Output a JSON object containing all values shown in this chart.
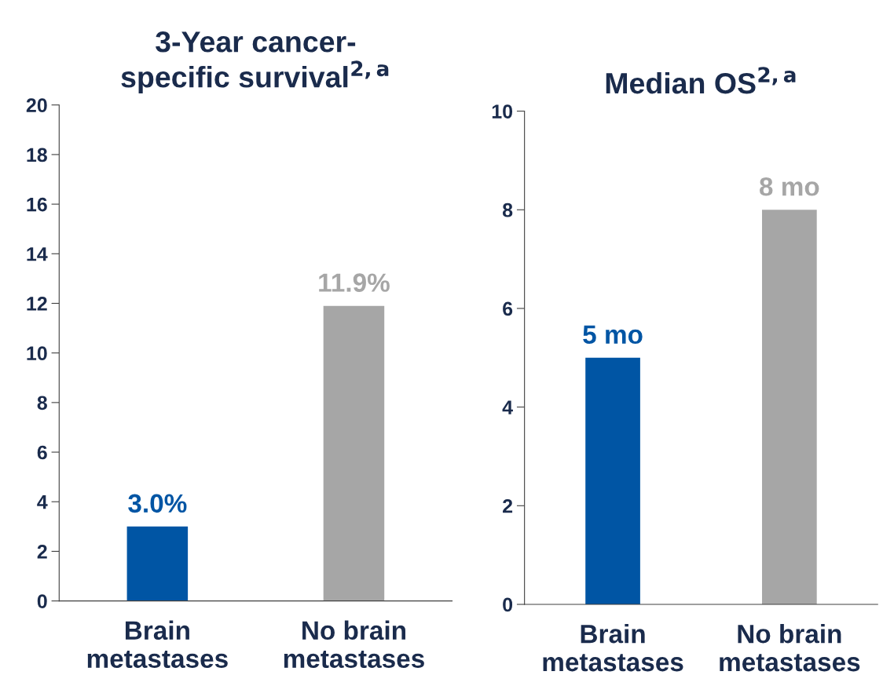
{
  "chart_data": [
    {
      "type": "bar",
      "title": "3-Year cancer-\nspecific survival$^{2,a}$",
      "categories": [
        "Brain\nmetastases",
        "No brain\nmetastases"
      ],
      "values": [
        3.0,
        11.9
      ],
      "colors": [
        "#0055a4",
        "#a6a6a6"
      ],
      "value_labels": [
        "3.0%",
        "11.9%"
      ],
      "ylim": [
        0,
        20
      ],
      "yticks": [
        0,
        2,
        4,
        6,
        8,
        10,
        12,
        14,
        16,
        18,
        20
      ]
    },
    {
      "type": "bar",
      "title": "Median OS$^{2,a}$",
      "categories": [
        "Brain\nmetastases",
        "No brain\nmetastases"
      ],
      "values": [
        5,
        8
      ],
      "colors": [
        "#0055a4",
        "#a6a6a6"
      ],
      "value_labels": [
        "5 mo",
        "8 mo"
      ],
      "ylim": [
        0,
        10
      ],
      "yticks": [
        0,
        2,
        4,
        6,
        8,
        10
      ]
    }
  ]
}
